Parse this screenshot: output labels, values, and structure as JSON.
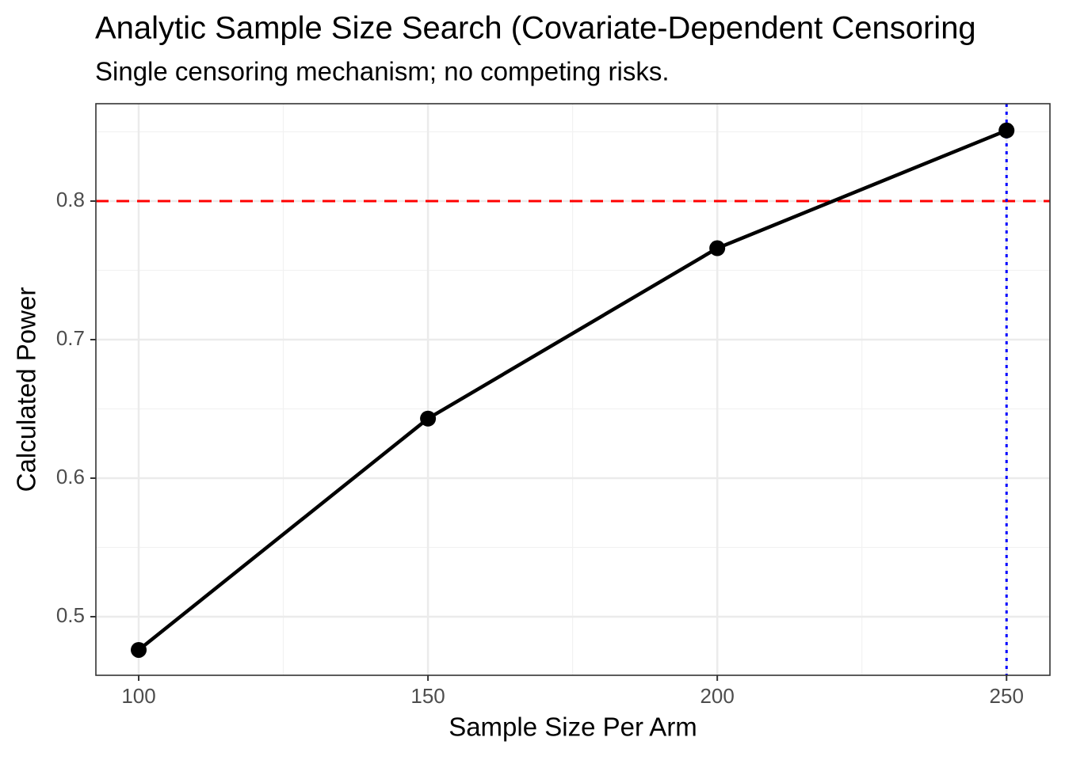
{
  "chart_data": {
    "type": "line",
    "title": "Analytic Sample Size Search (Covariate-Dependent Censoring",
    "subtitle": "Single censoring mechanism; no competing risks.",
    "x_label": "Sample Size Per Arm",
    "y_label": "Calculated Power",
    "x": [
      100,
      150,
      200,
      250
    ],
    "series": [
      {
        "color": "#000000",
        "values": [
          0.476,
          0.643,
          0.766,
          0.851
        ]
      }
    ],
    "xlim": [
      92.6,
      257.5
    ],
    "xticks": [
      100,
      150,
      200,
      250
    ],
    "ylim": [
      0.4577,
      0.8703
    ],
    "yticks": [
      0.5,
      0.6,
      0.7,
      0.8
    ],
    "grid": true,
    "reference_lines": [
      {
        "axis": "y",
        "value": 0.8,
        "color": "#ff0000",
        "style": "dashed"
      },
      {
        "axis": "x",
        "value": 250,
        "color": "#0000ff",
        "style": "dotted"
      }
    ]
  }
}
